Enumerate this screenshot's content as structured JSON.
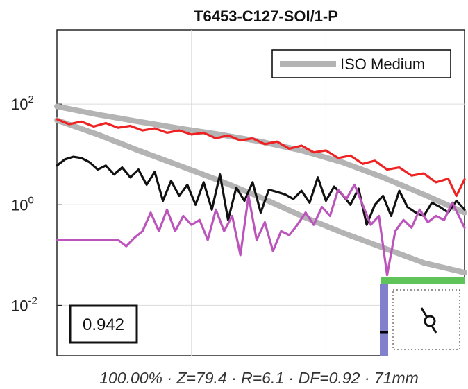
{
  "chart_data": {
    "type": "line",
    "title": "T6453-C127-SOI/1-P",
    "y_scale": "log",
    "ylim": [
      0.001,
      3000
    ],
    "xlim": [
      0,
      100
    ],
    "y_ticks": [
      {
        "value": 0.01,
        "base": "10",
        "exp": "-2"
      },
      {
        "value": 1,
        "base": "10",
        "exp": "0"
      },
      {
        "value": 100,
        "base": "10",
        "exp": "2"
      }
    ],
    "x_grid": [
      33,
      66
    ],
    "grid": true,
    "legend": {
      "position": "top-right",
      "entries": [
        "ISO Medium"
      ]
    },
    "series": [
      {
        "name": "ISO Medium",
        "role": "upper",
        "color": "#b4b4b4",
        "x": [
          0,
          10,
          20,
          30,
          40,
          50,
          60,
          70,
          80,
          90,
          100
        ],
        "y": [
          90,
          62,
          45,
          33,
          25,
          18,
          12,
          7,
          3.5,
          1.6,
          0.7
        ]
      },
      {
        "role": "lower",
        "color": "#b4b4b4",
        "x": [
          0,
          10,
          20,
          30,
          40,
          50,
          60,
          70,
          80,
          90,
          100
        ],
        "y": [
          48,
          25,
          12,
          6,
          3,
          1.4,
          0.6,
          0.28,
          0.14,
          0.07,
          0.045
        ]
      },
      {
        "color": "#ee2222",
        "x": [
          0,
          3,
          6,
          9,
          12,
          15,
          18,
          21,
          24,
          27,
          30,
          33,
          36,
          39,
          42,
          45,
          48,
          51,
          54,
          57,
          60,
          63,
          66,
          69,
          72,
          75,
          78,
          81,
          84,
          87,
          90,
          93,
          96,
          98,
          100
        ],
        "y": [
          50,
          40,
          45,
          36,
          42,
          34,
          37,
          30,
          33,
          27,
          30,
          25,
          27,
          21,
          24,
          19,
          21,
          16,
          18,
          13,
          15,
          11,
          12,
          8.5,
          9.5,
          6.5,
          7.5,
          5,
          5.5,
          3.8,
          4.2,
          2.8,
          3.3,
          1.5,
          3.2
        ]
      },
      {
        "color": "#111111",
        "x": [
          0,
          2,
          4,
          6,
          8,
          10,
          12,
          14,
          16,
          18,
          20,
          22,
          24,
          26,
          28,
          30,
          32,
          34,
          36,
          38,
          40,
          42,
          44,
          46,
          48,
          50,
          52,
          54,
          56,
          58,
          60,
          62,
          64,
          66,
          68,
          70,
          72,
          74,
          76,
          78,
          80,
          82,
          84,
          86,
          88,
          90,
          92,
          94,
          96,
          98,
          100
        ],
        "y": [
          6,
          8,
          9,
          8.5,
          7,
          5,
          6,
          4,
          5.5,
          3.5,
          5,
          2.5,
          4.5,
          1.2,
          3,
          1.5,
          2.5,
          1.0,
          2.8,
          0.8,
          4.0,
          0.5,
          2.2,
          1.2,
          2.8,
          0.7,
          2.0,
          1.8,
          1.6,
          1.3,
          1.9,
          1.1,
          3.5,
          1.2,
          2.3,
          1.6,
          1.0,
          2.1,
          0.4,
          1.0,
          1.5,
          0.6,
          1.9,
          0.9,
          0.7,
          0.6,
          1.1,
          0.9,
          0.7,
          1.2,
          0.8
        ]
      },
      {
        "color": "#bb55bb",
        "x": [
          0,
          3,
          6,
          9,
          12,
          15,
          17,
          19,
          21,
          23,
          25,
          27,
          29,
          31,
          33,
          35,
          37,
          39,
          41,
          43,
          45,
          47,
          49,
          51,
          53,
          55,
          57,
          59,
          61,
          63,
          65,
          67,
          69,
          71,
          73,
          75,
          77,
          79,
          81,
          83,
          85,
          87,
          89,
          91,
          93,
          95,
          97,
          100
        ],
        "y": [
          0.2,
          0.2,
          0.2,
          0.2,
          0.2,
          0.2,
          0.15,
          0.22,
          0.3,
          0.7,
          0.3,
          0.8,
          0.3,
          0.6,
          0.4,
          0.5,
          0.2,
          0.8,
          0.3,
          0.6,
          0.1,
          1.5,
          0.2,
          0.45,
          0.12,
          0.3,
          0.25,
          0.4,
          0.7,
          0.4,
          0.9,
          0.6,
          2.0,
          1.3,
          2.5,
          1.0,
          0.4,
          0.6,
          0.04,
          0.3,
          0.5,
          0.35,
          0.8,
          0.45,
          0.6,
          0.5,
          1.1,
          0.35
        ]
      }
    ],
    "score": "0.942",
    "caption": "100.00% · Z=79.4 · R=6.1 · DF=0.92 · 71mm"
  }
}
